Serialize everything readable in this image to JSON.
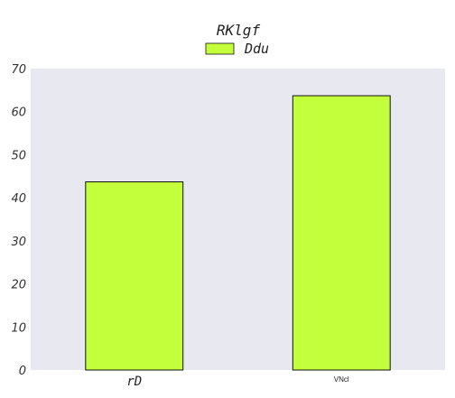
{
  "chart_data": {
    "type": "bar",
    "title": "RKlgf",
    "categories": [
      "rD",
      "VNcl"
    ],
    "series": [
      {
        "name": "Ddu",
        "values": [
          43.7,
          63.7
        ]
      }
    ],
    "ylim": [
      0,
      70
    ],
    "yticks": [
      0,
      10,
      20,
      30,
      40,
      50,
      60,
      70
    ],
    "grid": false,
    "legend_position": "top-center",
    "colors": {
      "bar": "#c3ff3a",
      "bar_edge": "#111111",
      "plot_background": "#e8e8f0"
    }
  }
}
